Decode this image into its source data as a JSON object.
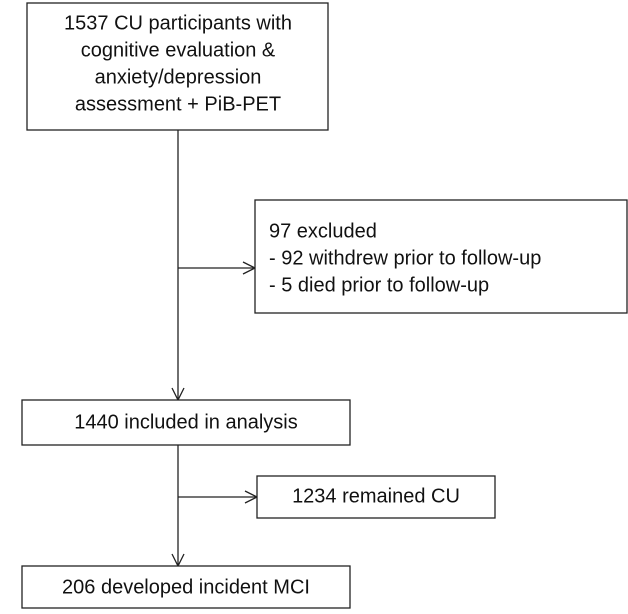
{
  "nodes": [
    {
      "lines": [
        "1537 CU participants with",
        "cognitive evaluation &",
        "anxiety/depression",
        "assessment + PiB-PET"
      ]
    },
    {
      "lines": [
        "97 excluded",
        "- 92 withdrew prior to follow-up",
        "- 5 died prior to follow-up"
      ]
    },
    {
      "lines": [
        "1440 included in analysis"
      ]
    },
    {
      "lines": [
        "1234 remained CU"
      ]
    },
    {
      "lines": [
        "206 developed incident MCI"
      ]
    }
  ]
}
